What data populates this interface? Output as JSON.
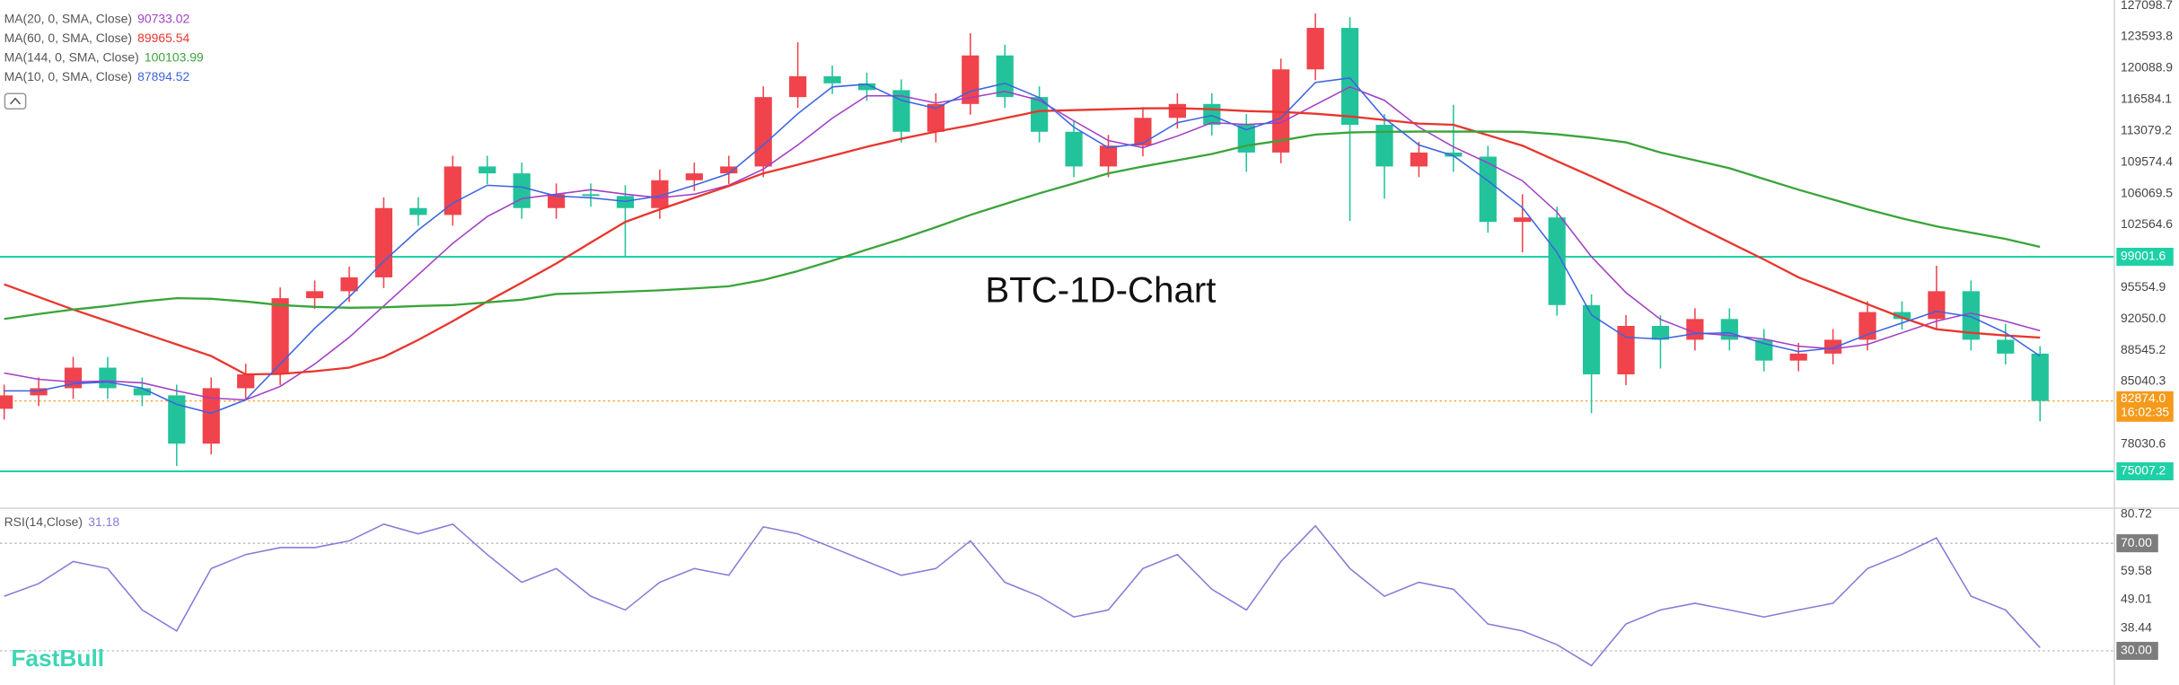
{
  "chart_data": [
    {
      "type": "candlestick",
      "title": "BTC-1D-Chart",
      "up_color": "#f0434c",
      "down_color": "#22c39a",
      "ylim": [
        70958,
        127719
      ],
      "yticks": [
        127098.7,
        123593.8,
        120088.9,
        116584.1,
        113079.2,
        109574.4,
        106069.5,
        102564.6,
        95554.9,
        {
          "value": 92050,
          "label": "92050.0"
        },
        88545.2,
        85040.3,
        78030.6
      ],
      "levels": [
        99001.6,
        75007.2
      ],
      "level_color": "#1fd0a6",
      "last_price": {
        "value": 82874,
        "label": "82874.0"
      },
      "countdown": "16:02:35",
      "last_price_color": "#f59a1b",
      "open": [
        82000,
        83500,
        84300,
        86600,
        84300,
        83500,
        78100,
        84300,
        85850,
        94370,
        95150,
        96700,
        104450,
        103680,
        109100,
        108330,
        104450,
        106000,
        105800,
        104450,
        107560,
        108330,
        109100,
        116860,
        119190,
        118400,
        117640,
        112980,
        116090,
        121520,
        116860,
        112980,
        109100,
        111430,
        114540,
        116090,
        113760,
        110660,
        119960,
        124600,
        113760,
        109100,
        110660,
        110200,
        102900,
        103400,
        93600,
        85850,
        91270,
        89720,
        92040,
        89720,
        87390,
        88170,
        89720,
        92820,
        92040,
        95150,
        89720,
        88170
      ],
      "high": [
        84700,
        85500,
        87800,
        87800,
        85500,
        84700,
        85500,
        87050,
        95570,
        96350,
        97900,
        105650,
        105650,
        110300,
        110300,
        109530,
        107200,
        107200,
        107000,
        108760,
        109530,
        110300,
        118060,
        123000,
        120390,
        119600,
        118840,
        117290,
        124000,
        122720,
        118060,
        114180,
        112630,
        115740,
        117290,
        117290,
        114960,
        121160,
        126200,
        125800,
        114960,
        111860,
        116000,
        111400,
        106000,
        104600,
        94800,
        92470,
        92470,
        93240,
        93240,
        90920,
        89370,
        90920,
        94020,
        94020,
        98000,
        96350,
        91500,
        89000
      ],
      "low": [
        80800,
        82300,
        83100,
        83100,
        82300,
        75600,
        76900,
        83100,
        84650,
        93170,
        93950,
        95500,
        102480,
        102480,
        107130,
        103250,
        103250,
        104600,
        99000,
        103250,
        106360,
        107130,
        107900,
        115660,
        117200,
        116440,
        111780,
        111780,
        114890,
        115660,
        111780,
        107900,
        107900,
        110230,
        113340,
        112560,
        108500,
        109460,
        118760,
        103000,
        105500,
        107900,
        108500,
        101700,
        99500,
        92400,
        81500,
        84650,
        86500,
        88520,
        88520,
        86190,
        86190,
        86970,
        88520,
        90840,
        90840,
        88520,
        86970,
        80600
      ],
      "close": [
        83500,
        84300,
        86600,
        84300,
        83500,
        78100,
        84300,
        85850,
        94370,
        95150,
        96700,
        104450,
        103680,
        109100,
        108330,
        104450,
        106000,
        105800,
        104450,
        107560,
        108330,
        109100,
        116860,
        119190,
        118400,
        117640,
        112980,
        116090,
        121520,
        116860,
        112980,
        109100,
        111430,
        114540,
        116090,
        113760,
        110660,
        119960,
        124600,
        113760,
        109100,
        110660,
        110200,
        102900,
        103400,
        93600,
        85850,
        91270,
        89720,
        92040,
        89720,
        87390,
        88170,
        89720,
        92820,
        92040,
        95150,
        89720,
        88170,
        82874
      ],
      "series": [
        {
          "name": "MA(20, 0, SMA, Close)",
          "color": "#a23ec6",
          "values": [
            86000,
            85300,
            85000,
            85100,
            84900,
            84000,
            83200,
            83000,
            84500,
            87000,
            90000,
            93500,
            97000,
            100500,
            103500,
            105500,
            106000,
            106500,
            106000,
            105600,
            106000,
            107000,
            108800,
            111500,
            114500,
            117000,
            117000,
            116200,
            116800,
            117500,
            116500,
            114200,
            112000,
            111200,
            112500,
            114000,
            113800,
            114000,
            116000,
            118000,
            116500,
            113500,
            111300,
            109500,
            107500,
            104000,
            99000,
            95000,
            92000,
            90500,
            90200,
            89800,
            89000,
            88700,
            89200,
            90500,
            91800,
            92700,
            91800,
            90733.02
          ]
        },
        {
          "name": "MA(60, 0, SMA, Close)",
          "color": "#e8362e",
          "values": [
            95920,
            94500,
            93100,
            91800,
            90500,
            89200,
            87900,
            85850,
            85900,
            86200,
            86600,
            87800,
            89700,
            91800,
            94000,
            96100,
            98250,
            100600,
            102900,
            104300,
            105600,
            106900,
            108330,
            109300,
            110300,
            111300,
            112200,
            113000,
            113700,
            114500,
            115300,
            115400,
            115500,
            115600,
            115620,
            115500,
            115300,
            115200,
            115000,
            114700,
            114300,
            113900,
            113760,
            112600,
            111430,
            109700,
            108000,
            106200,
            104450,
            102500,
            100600,
            98700,
            96700,
            95200,
            93700,
            92200,
            90900,
            90500,
            90200,
            89965.54
          ]
        },
        {
          "name": "MA(144, 0, SMA, Close)",
          "color": "#3aa43a",
          "values": [
            92050,
            92600,
            93100,
            93500,
            94000,
            94370,
            94300,
            94000,
            93600,
            93400,
            93300,
            93350,
            93500,
            93600,
            93900,
            94200,
            94840,
            94950,
            95100,
            95250,
            95460,
            95700,
            96400,
            97400,
            98560,
            99800,
            101000,
            102300,
            103680,
            104900,
            106100,
            107200,
            108330,
            109100,
            109800,
            110500,
            111430,
            112000,
            112670,
            112900,
            112980,
            113000,
            113000,
            113000,
            112980,
            112700,
            112300,
            111800,
            110660,
            109800,
            108900,
            107700,
            106500,
            105400,
            104300,
            103300,
            102400,
            101700,
            101000,
            100103.99
          ]
        },
        {
          "name": "MA(10, 0, SMA, Close)",
          "color": "#3d64e0",
          "values": [
            84000,
            84000,
            84800,
            85000,
            84300,
            82500,
            81500,
            83000,
            87000,
            91000,
            94500,
            98500,
            102000,
            105000,
            107000,
            106800,
            105800,
            105600,
            105200,
            105800,
            107000,
            108300,
            111500,
            115000,
            118000,
            118300,
            116500,
            115600,
            117500,
            118400,
            116800,
            113500,
            111200,
            111700,
            114000,
            114800,
            113200,
            114500,
            118500,
            119000,
            114500,
            111500,
            110300,
            107500,
            104500,
            99500,
            92500,
            90000,
            89800,
            90400,
            90500,
            89300,
            88400,
            88800,
            90300,
            91600,
            92900,
            92300,
            90500,
            87894.52
          ]
        }
      ]
    },
    {
      "type": "line",
      "ylim": [
        17.3,
        83.3
      ],
      "yticks": [
        80.72,
        {
          "value": 70,
          "label": "70.00",
          "highlight": true
        },
        59.58,
        49.01,
        38.44,
        {
          "value": 30,
          "label": "30.00",
          "highlight": true
        }
      ],
      "series": [
        {
          "name": "RSI(14,Close)",
          "color": "#8a7ad8",
          "values": [
            50.3,
            55,
            63.2,
            60.6,
            45.2,
            37.4,
            60.6,
            65.8,
            68.4,
            68.4,
            70.9,
            77.1,
            73.5,
            77.1,
            65.8,
            55.5,
            60.6,
            50.3,
            45.2,
            55.5,
            60.6,
            58.1,
            76.1,
            73.5,
            68.4,
            63.2,
            58.1,
            60.6,
            70.9,
            55.5,
            50.3,
            42.6,
            45.2,
            60.6,
            65.8,
            52.9,
            45.2,
            63.2,
            76.5,
            60.6,
            50.3,
            55.5,
            52.9,
            40,
            37.4,
            32.3,
            24.5,
            40,
            45.2,
            47.7,
            45.2,
            42.6,
            45.2,
            47.7,
            60.6,
            65.8,
            72,
            50.3,
            45.2,
            31.18
          ]
        }
      ]
    },
    {
      "type": "logo",
      "title": "FastBull",
      "color": "#3dd6b4"
    }
  ]
}
